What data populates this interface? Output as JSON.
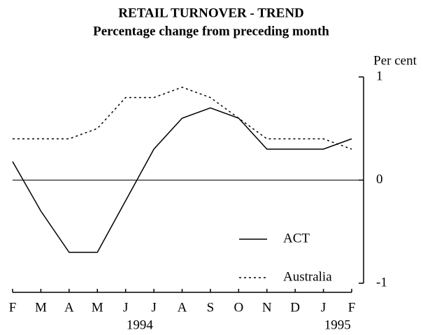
{
  "chart_data": {
    "type": "line",
    "title": "RETAIL TURNOVER - TREND",
    "subtitle": "Percentage change from preceding month",
    "y_axis_label": "Per cent",
    "categories": [
      "F",
      "M",
      "A",
      "M",
      "J",
      "J",
      "A",
      "S",
      "O",
      "N",
      "D",
      "J",
      "F"
    ],
    "years": [
      "1994",
      "1995"
    ],
    "series": [
      {
        "name": "ACT",
        "color": "#000000",
        "dash": "solid",
        "values": [
          0.18,
          -0.3,
          -0.7,
          -0.7,
          -0.2,
          0.3,
          0.6,
          0.7,
          0.6,
          0.3,
          0.3,
          0.3,
          0.4
        ]
      },
      {
        "name": "Australia",
        "color": "#000000",
        "dash": "dotted",
        "values": [
          0.4,
          0.4,
          0.4,
          0.5,
          0.8,
          0.8,
          0.9,
          0.8,
          0.6,
          0.4,
          0.4,
          0.4,
          0.3
        ]
      }
    ],
    "ylim": [
      -1,
      1
    ],
    "yticks": [
      -1,
      0,
      1
    ],
    "y_axis_side": "right",
    "legend": "lower right"
  }
}
